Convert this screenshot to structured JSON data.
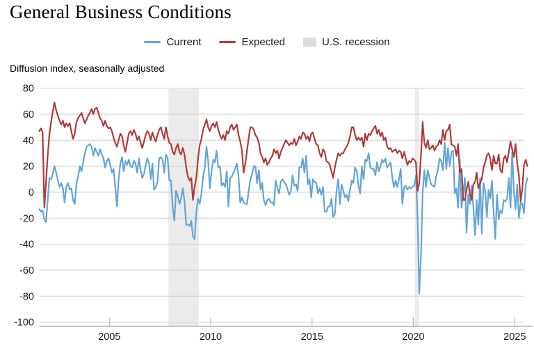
{
  "title": "General Business Conditions",
  "subtitle": "Diffusion index, seasonally adjusted",
  "legend": {
    "items": [
      {
        "label": "Current",
        "type": "line",
        "color": "#63A5D6"
      },
      {
        "label": "Expected",
        "type": "line",
        "color": "#AE3C3A"
      },
      {
        "label": "U.S. recession",
        "type": "box",
        "color": "#DDDDDD"
      }
    ]
  },
  "chart_data": {
    "type": "line",
    "title": "General Business Conditions",
    "xlabel": "",
    "ylabel": "Diffusion index, seasonally adjusted",
    "grid": true,
    "legend_position": "top-center",
    "ylim": [
      -100,
      80
    ],
    "y_ticks": [
      80,
      60,
      40,
      20,
      0,
      -20,
      -40,
      -60,
      -80,
      -100
    ],
    "x_tick_years": [
      2005,
      2010,
      2015,
      2020,
      2025
    ],
    "x_tick_labels": [
      "2005",
      "2010",
      "2015",
      "2020",
      "2025"
    ],
    "x_start_year": 2001.5417,
    "points_per_year": 12,
    "colors": {
      "recession_band": "#EBEBEB",
      "gridline": "#CCCCCC",
      "axis": "#B3B3B3"
    },
    "recession_bands": [
      {
        "start": 2007.917,
        "end": 2009.417
      },
      {
        "start": 2020.083,
        "end": 2020.29
      }
    ],
    "series": [
      {
        "name": "Current",
        "color": "#63A5D6",
        "values": [
          -13,
          -15,
          -14,
          -21,
          -23,
          -6,
          11,
          10,
          14,
          20,
          15,
          9,
          4,
          7,
          3,
          -8,
          4,
          7,
          2,
          3,
          -6,
          -9,
          6,
          12,
          20,
          16,
          23,
          30,
          35,
          36,
          37,
          35,
          28,
          34,
          31,
          28,
          33,
          29,
          26,
          19,
          24,
          26,
          21,
          15,
          18,
          4,
          -11,
          10,
          22,
          27,
          16,
          24,
          21,
          25,
          20,
          19,
          24,
          22,
          15,
          26,
          17,
          11,
          14,
          21,
          26,
          22,
          10,
          22,
          2,
          4,
          8,
          26,
          27,
          25,
          15,
          29,
          26,
          9,
          9,
          -12,
          -22,
          1,
          -3,
          -9,
          -5,
          3,
          -7,
          -25,
          -25,
          -26,
          -22,
          -34,
          -36,
          -15,
          -5,
          -9,
          -1,
          12,
          19,
          35,
          24,
          3,
          16,
          25,
          23,
          32,
          19,
          20,
          5,
          7,
          4,
          16,
          -11,
          11,
          12,
          15,
          18,
          22,
          12,
          -8,
          -4,
          -8,
          -9,
          -9,
          1,
          10,
          14,
          20,
          20,
          7,
          17,
          2,
          7,
          -6,
          -10,
          -6,
          -5,
          -8,
          -8,
          -10,
          9,
          3,
          -1,
          8,
          10,
          8,
          6,
          2,
          -2,
          1,
          13,
          5,
          6,
          1,
          19,
          19,
          26,
          15,
          28,
          6,
          10,
          -4,
          10,
          8,
          7,
          -1,
          3,
          -2,
          4,
          -15,
          -15,
          -11,
          -11,
          -5,
          -19,
          -17,
          1,
          10,
          -9,
          6,
          1,
          -4,
          -2,
          -7,
          2,
          9,
          7,
          19,
          16,
          5,
          -1,
          20,
          10,
          25,
          24,
          30,
          19,
          18,
          18,
          13,
          23,
          16,
          20,
          25,
          23,
          26,
          19,
          21,
          23,
          11,
          4,
          9,
          4,
          10,
          18,
          -9,
          4,
          5,
          2,
          4,
          3,
          4,
          5,
          13,
          -21,
          -78,
          -48,
          0,
          17,
          4,
          17,
          11,
          6,
          5,
          4,
          12,
          17,
          26,
          24,
          17,
          38,
          18,
          34,
          20,
          31,
          32,
          -1,
          3,
          -12,
          25,
          -12,
          -1,
          11,
          -31,
          -2,
          -9,
          5,
          -11,
          -33,
          -6,
          -25,
          11,
          -32,
          7,
          1,
          -19,
          2,
          -5,
          9,
          -15,
          -36,
          -2,
          -21,
          -14,
          -16,
          -6,
          -7,
          -5,
          11,
          -12,
          31,
          0,
          -13,
          6,
          -20,
          -8,
          -9,
          -16,
          6,
          11
        ]
      },
      {
        "name": "Expected",
        "color": "#AE3C3A",
        "values": [
          47,
          49,
          46,
          -12,
          8,
          28,
          44,
          54,
          62,
          69,
          63,
          59,
          55,
          52,
          55,
          50,
          53,
          51,
          53,
          47,
          41,
          45,
          54,
          57,
          59,
          61,
          57,
          53,
          56,
          59,
          61,
          64,
          60,
          64,
          65,
          61,
          57,
          55,
          51,
          55,
          51,
          49,
          50,
          47,
          42,
          38,
          35,
          40,
          45,
          43,
          36,
          31,
          38,
          45,
          47,
          44,
          48,
          45,
          40,
          43,
          38,
          34,
          39,
          44,
          47,
          45,
          40,
          46,
          42,
          39,
          44,
          48,
          50,
          45,
          41,
          50,
          43,
          38,
          37,
          31,
          29,
          34,
          37,
          31,
          29,
          34,
          29,
          19,
          12,
          9,
          11,
          -6,
          4,
          11,
          26,
          36,
          41,
          48,
          52,
          56,
          50,
          47,
          51,
          53,
          50,
          54,
          48,
          44,
          41,
          44,
          40,
          47,
          45,
          50,
          52,
          48,
          50,
          52,
          44,
          39,
          32,
          15,
          22,
          32,
          42,
          50,
          50,
          48,
          44,
          42,
          38,
          30,
          27,
          23,
          26,
          21,
          23,
          26,
          28,
          33,
          30,
          32,
          26,
          31,
          34,
          37,
          40,
          38,
          36,
          38,
          37,
          41,
          36,
          39,
          43,
          41,
          46,
          45,
          41,
          43,
          39,
          45,
          46,
          41,
          37,
          36,
          30,
          27,
          33,
          31,
          24,
          23,
          21,
          16,
          11,
          19,
          25,
          30,
          28,
          30,
          30,
          33,
          35,
          38,
          43,
          50,
          50,
          44,
          40,
          42,
          40,
          42,
          35,
          45,
          40,
          45,
          44,
          47,
          49,
          51,
          45,
          48,
          43,
          46,
          40,
          42,
          35,
          33,
          34,
          31,
          32,
          33,
          30,
          32,
          31,
          26,
          31,
          26,
          21,
          24,
          23,
          26,
          25,
          23,
          1,
          7,
          29,
          54,
          38,
          34,
          40,
          33,
          34,
          36,
          32,
          35,
          36,
          40,
          37,
          48,
          40,
          47,
          48,
          52,
          37,
          36,
          35,
          28,
          37,
          15,
          18,
          -6,
          -6,
          2,
          8,
          -2,
          -6,
          6,
          8,
          15,
          3,
          7,
          10,
          19,
          23,
          28,
          30,
          26,
          17,
          28,
          22,
          22,
          29,
          17,
          15,
          26,
          28,
          23,
          31,
          39,
          33,
          27,
          37,
          22,
          13,
          -7,
          3,
          21,
          25,
          20
        ]
      }
    ]
  }
}
